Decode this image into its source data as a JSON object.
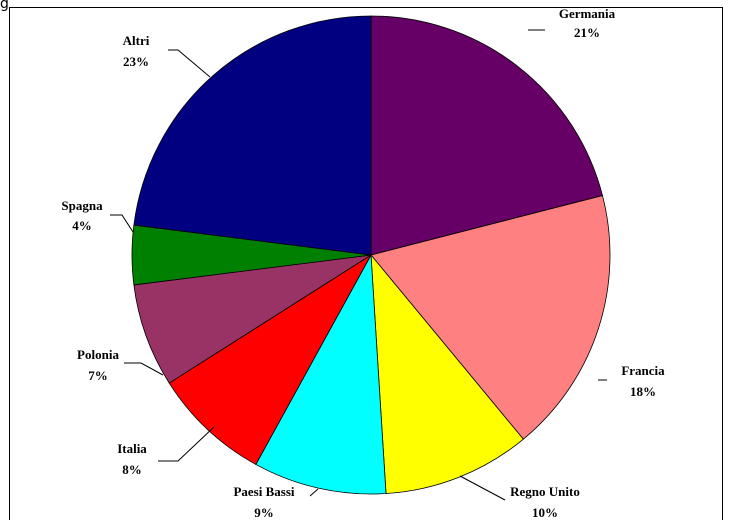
{
  "header": {
    "fragment": "g"
  },
  "chart_data": {
    "type": "pie",
    "start_angle_deg": 0,
    "direction": "clockwise",
    "slices": [
      {
        "label": "Germania",
        "pct_label": "21%",
        "value": 21,
        "color": "#660066"
      },
      {
        "label": "Francia",
        "pct_label": "18%",
        "value": 18,
        "color": "#FF8080"
      },
      {
        "label": "Regno Unito",
        "pct_label": "10%",
        "value": 10,
        "color": "#FFFF00"
      },
      {
        "label": "Paesi Bassi",
        "pct_label": "9%",
        "value": 9,
        "color": "#00FFFF"
      },
      {
        "label": "Italia",
        "pct_label": "8%",
        "value": 8,
        "color": "#FF0000"
      },
      {
        "label": "Polonia",
        "pct_label": "7%",
        "value": 7,
        "color": "#993366"
      },
      {
        "label": "Spagna",
        "pct_label": "4%",
        "value": 4,
        "color": "#008000"
      },
      {
        "label": "Altri",
        "pct_label": "23%",
        "value": 23,
        "color": "#000080"
      }
    ]
  }
}
